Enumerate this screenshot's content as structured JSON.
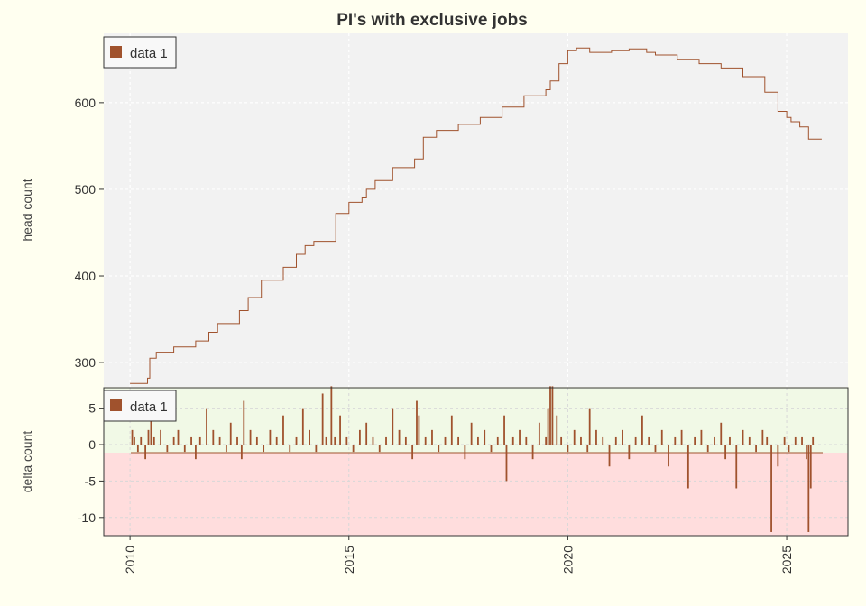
{
  "title": "PI's with exclusive jobs",
  "colors": {
    "background": "#fffff0",
    "panel": "#f2f2f2",
    "positive_band": "#f1f9e6",
    "negative_band": "#ffdddd",
    "series": "#a0522d",
    "grid": "#d8d8d8",
    "axis_text": "#333333"
  },
  "chart_data": [
    {
      "type": "line",
      "ylabel": "head count",
      "xlim": [
        2009.4,
        2026.4
      ],
      "ylim": [
        272,
        680
      ],
      "yticks": [
        300,
        400,
        500,
        600
      ],
      "grid": true,
      "legend": {
        "placement": "top-left",
        "entries": [
          "data 1"
        ]
      },
      "series": [
        {
          "name": "data 1",
          "x": [
            2010.0,
            2010.4,
            2010.45,
            2010.6,
            2011.0,
            2011.5,
            2011.8,
            2012.0,
            2012.5,
            2012.7,
            2013.0,
            2013.5,
            2013.8,
            2014.0,
            2014.2,
            2014.5,
            2014.7,
            2015.0,
            2015.3,
            2015.4,
            2015.6,
            2016.0,
            2016.5,
            2016.7,
            2017.0,
            2017.5,
            2018.0,
            2018.5,
            2019.0,
            2019.5,
            2019.6,
            2019.8,
            2020.0,
            2020.2,
            2020.5,
            2021.0,
            2021.4,
            2021.8,
            2022.0,
            2022.5,
            2023.0,
            2023.5,
            2024.0,
            2024.5,
            2024.8,
            2025.0,
            2025.1,
            2025.3,
            2025.5,
            2025.8
          ],
          "y": [
            276,
            282,
            305,
            312,
            318,
            325,
            335,
            345,
            360,
            375,
            395,
            410,
            425,
            435,
            440,
            440,
            472,
            485,
            490,
            500,
            510,
            525,
            535,
            560,
            568,
            575,
            583,
            595,
            608,
            615,
            625,
            645,
            660,
            663,
            658,
            660,
            662,
            658,
            655,
            650,
            645,
            640,
            630,
            612,
            590,
            583,
            578,
            572,
            558,
            558
          ]
        }
      ]
    },
    {
      "type": "bar",
      "ylabel": "delta count",
      "xlim": [
        2009.4,
        2026.4
      ],
      "ylim": [
        -12.5,
        7.8
      ],
      "yticks": [
        -10,
        -5,
        0,
        5
      ],
      "grid": true,
      "legend": {
        "placement": "top-left",
        "entries": [
          "data 1"
        ]
      },
      "xticks": [
        2010,
        2015,
        2020,
        2025
      ],
      "series": [
        {
          "name": "data 1",
          "x": [
            2010.05,
            2010.1,
            2010.18,
            2010.25,
            2010.35,
            2010.42,
            2010.48,
            2010.55,
            2010.7,
            2010.85,
            2011.0,
            2011.1,
            2011.25,
            2011.4,
            2011.5,
            2011.6,
            2011.75,
            2011.9,
            2012.05,
            2012.2,
            2012.3,
            2012.45,
            2012.55,
            2012.6,
            2012.75,
            2012.9,
            2013.05,
            2013.2,
            2013.35,
            2013.5,
            2013.65,
            2013.8,
            2013.95,
            2014.1,
            2014.25,
            2014.4,
            2014.48,
            2014.6,
            2014.68,
            2014.8,
            2014.95,
            2015.1,
            2015.25,
            2015.4,
            2015.55,
            2015.7,
            2015.85,
            2016.0,
            2016.15,
            2016.3,
            2016.45,
            2016.55,
            2016.6,
            2016.75,
            2016.9,
            2017.05,
            2017.2,
            2017.35,
            2017.5,
            2017.65,
            2017.8,
            2017.95,
            2018.1,
            2018.25,
            2018.4,
            2018.55,
            2018.6,
            2018.75,
            2018.9,
            2019.05,
            2019.2,
            2019.35,
            2019.5,
            2019.55,
            2019.6,
            2019.65,
            2019.75,
            2019.85,
            2020.0,
            2020.15,
            2020.3,
            2020.45,
            2020.5,
            2020.65,
            2020.8,
            2020.95,
            2021.1,
            2021.25,
            2021.4,
            2021.55,
            2021.7,
            2021.85,
            2022.0,
            2022.15,
            2022.3,
            2022.45,
            2022.6,
            2022.75,
            2022.9,
            2023.05,
            2023.2,
            2023.35,
            2023.5,
            2023.6,
            2023.7,
            2023.85,
            2024.0,
            2024.15,
            2024.3,
            2024.45,
            2024.55,
            2024.65,
            2024.8,
            2024.95,
            2025.05,
            2025.2,
            2025.35,
            2025.45,
            2025.5,
            2025.55,
            2025.6
          ],
          "y": [
            2,
            1,
            -1,
            1,
            -2,
            2,
            5,
            1,
            2,
            -1,
            1,
            2,
            -1,
            1,
            -2,
            1,
            5,
            2,
            1,
            -1,
            3,
            1,
            -2,
            6,
            2,
            1,
            -1,
            2,
            1,
            4,
            -1,
            1,
            5,
            2,
            -1,
            7,
            1,
            8,
            1,
            4,
            1,
            -1,
            2,
            3,
            1,
            -1,
            1,
            5,
            2,
            1,
            -2,
            6,
            4,
            1,
            2,
            -1,
            1,
            4,
            1,
            -2,
            3,
            1,
            2,
            -1,
            1,
            4,
            -5,
            1,
            2,
            1,
            -2,
            3,
            1,
            5,
            8,
            8,
            4,
            1,
            -1,
            2,
            1,
            -1,
            5,
            2,
            1,
            -3,
            1,
            2,
            -2,
            1,
            4,
            1,
            -1,
            2,
            -3,
            1,
            2,
            -6,
            1,
            2,
            -1,
            1,
            3,
            -2,
            1,
            -6,
            2,
            1,
            -1,
            2,
            1,
            -12,
            -3,
            1,
            -1,
            1,
            1,
            -2,
            -12,
            -6,
            1
          ]
        }
      ]
    }
  ]
}
